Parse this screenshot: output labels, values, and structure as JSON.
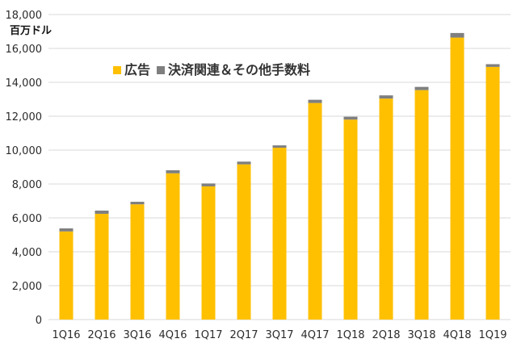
{
  "chart_data": {
    "type": "bar",
    "stacked": true,
    "y_unit": "百万ドル",
    "categories": [
      "1Q16",
      "2Q16",
      "3Q16",
      "4Q16",
      "1Q17",
      "2Q17",
      "3Q17",
      "4Q17",
      "1Q18",
      "2Q18",
      "3Q18",
      "4Q18",
      "1Q19"
    ],
    "series": [
      {
        "name": "広告",
        "color": "#FFC000",
        "values": [
          5200,
          6240,
          6800,
          8630,
          7860,
          9160,
          10140,
          12780,
          11800,
          13040,
          13540,
          16640,
          14910
        ]
      },
      {
        "name": "決済関連＆その他手数料",
        "color": "#7F7F7F",
        "values": [
          180,
          190,
          150,
          180,
          170,
          160,
          140,
          190,
          170,
          190,
          190,
          270,
          160
        ]
      }
    ],
    "ylim": [
      0,
      18000
    ],
    "yticks": [
      "0",
      "2,000",
      "4,000",
      "6,000",
      "8,000",
      "10,000",
      "12,000",
      "14,000",
      "16,000",
      "18,000"
    ],
    "grid": true,
    "legend_position": "top-left inside"
  }
}
